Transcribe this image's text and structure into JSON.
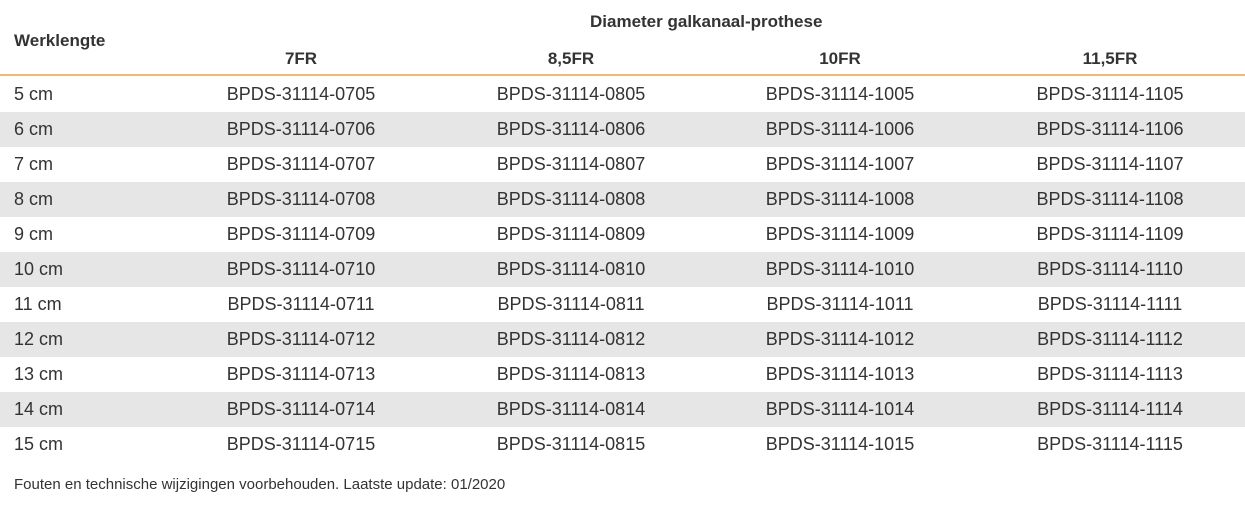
{
  "table": {
    "row_header": "Werklengte",
    "group_header": "Diameter galkanaal-prothese",
    "columns": [
      "7FR",
      "8,5FR",
      "10FR",
      "11,5FR"
    ],
    "rows": [
      {
        "length": "5 cm",
        "codes": [
          "BPDS-31114-0705",
          "BPDS-31114-0805",
          "BPDS-31114-1005",
          "BPDS-31114-1105"
        ]
      },
      {
        "length": "6 cm",
        "codes": [
          "BPDS-31114-0706",
          "BPDS-31114-0806",
          "BPDS-31114-1006",
          "BPDS-31114-1106"
        ]
      },
      {
        "length": "7 cm",
        "codes": [
          "BPDS-31114-0707",
          "BPDS-31114-0807",
          "BPDS-31114-1007",
          "BPDS-31114-1107"
        ]
      },
      {
        "length": "8 cm",
        "codes": [
          "BPDS-31114-0708",
          "BPDS-31114-0808",
          "BPDS-31114-1008",
          "BPDS-31114-1108"
        ]
      },
      {
        "length": "9 cm",
        "codes": [
          "BPDS-31114-0709",
          "BPDS-31114-0809",
          "BPDS-31114-1009",
          "BPDS-31114-1109"
        ]
      },
      {
        "length": "10 cm",
        "codes": [
          "BPDS-31114-0710",
          "BPDS-31114-0810",
          "BPDS-31114-1010",
          "BPDS-31114-1110"
        ]
      },
      {
        "length": "11 cm",
        "codes": [
          "BPDS-31114-0711",
          "BPDS-31114-0811",
          "BPDS-31114-1011",
          "BPDS-31114-1111"
        ]
      },
      {
        "length": "12 cm",
        "codes": [
          "BPDS-31114-0712",
          "BPDS-31114-0812",
          "BPDS-31114-1012",
          "BPDS-31114-1112"
        ]
      },
      {
        "length": "13 cm",
        "codes": [
          "BPDS-31114-0713",
          "BPDS-31114-0813",
          "BPDS-31114-1013",
          "BPDS-31114-1113"
        ]
      },
      {
        "length": "14 cm",
        "codes": [
          "BPDS-31114-0714",
          "BPDS-31114-0814",
          "BPDS-31114-1014",
          "BPDS-31114-1114"
        ]
      },
      {
        "length": "15 cm",
        "codes": [
          "BPDS-31114-0715",
          "BPDS-31114-0815",
          "BPDS-31114-1015",
          "BPDS-31114-1115"
        ]
      }
    ]
  },
  "footer": "Fouten en technische wijzigingen voorbehouden. Laatste update: 01/2020",
  "colors": {
    "header_rule": "#f0b878",
    "stripe": "#e6e6e6"
  }
}
